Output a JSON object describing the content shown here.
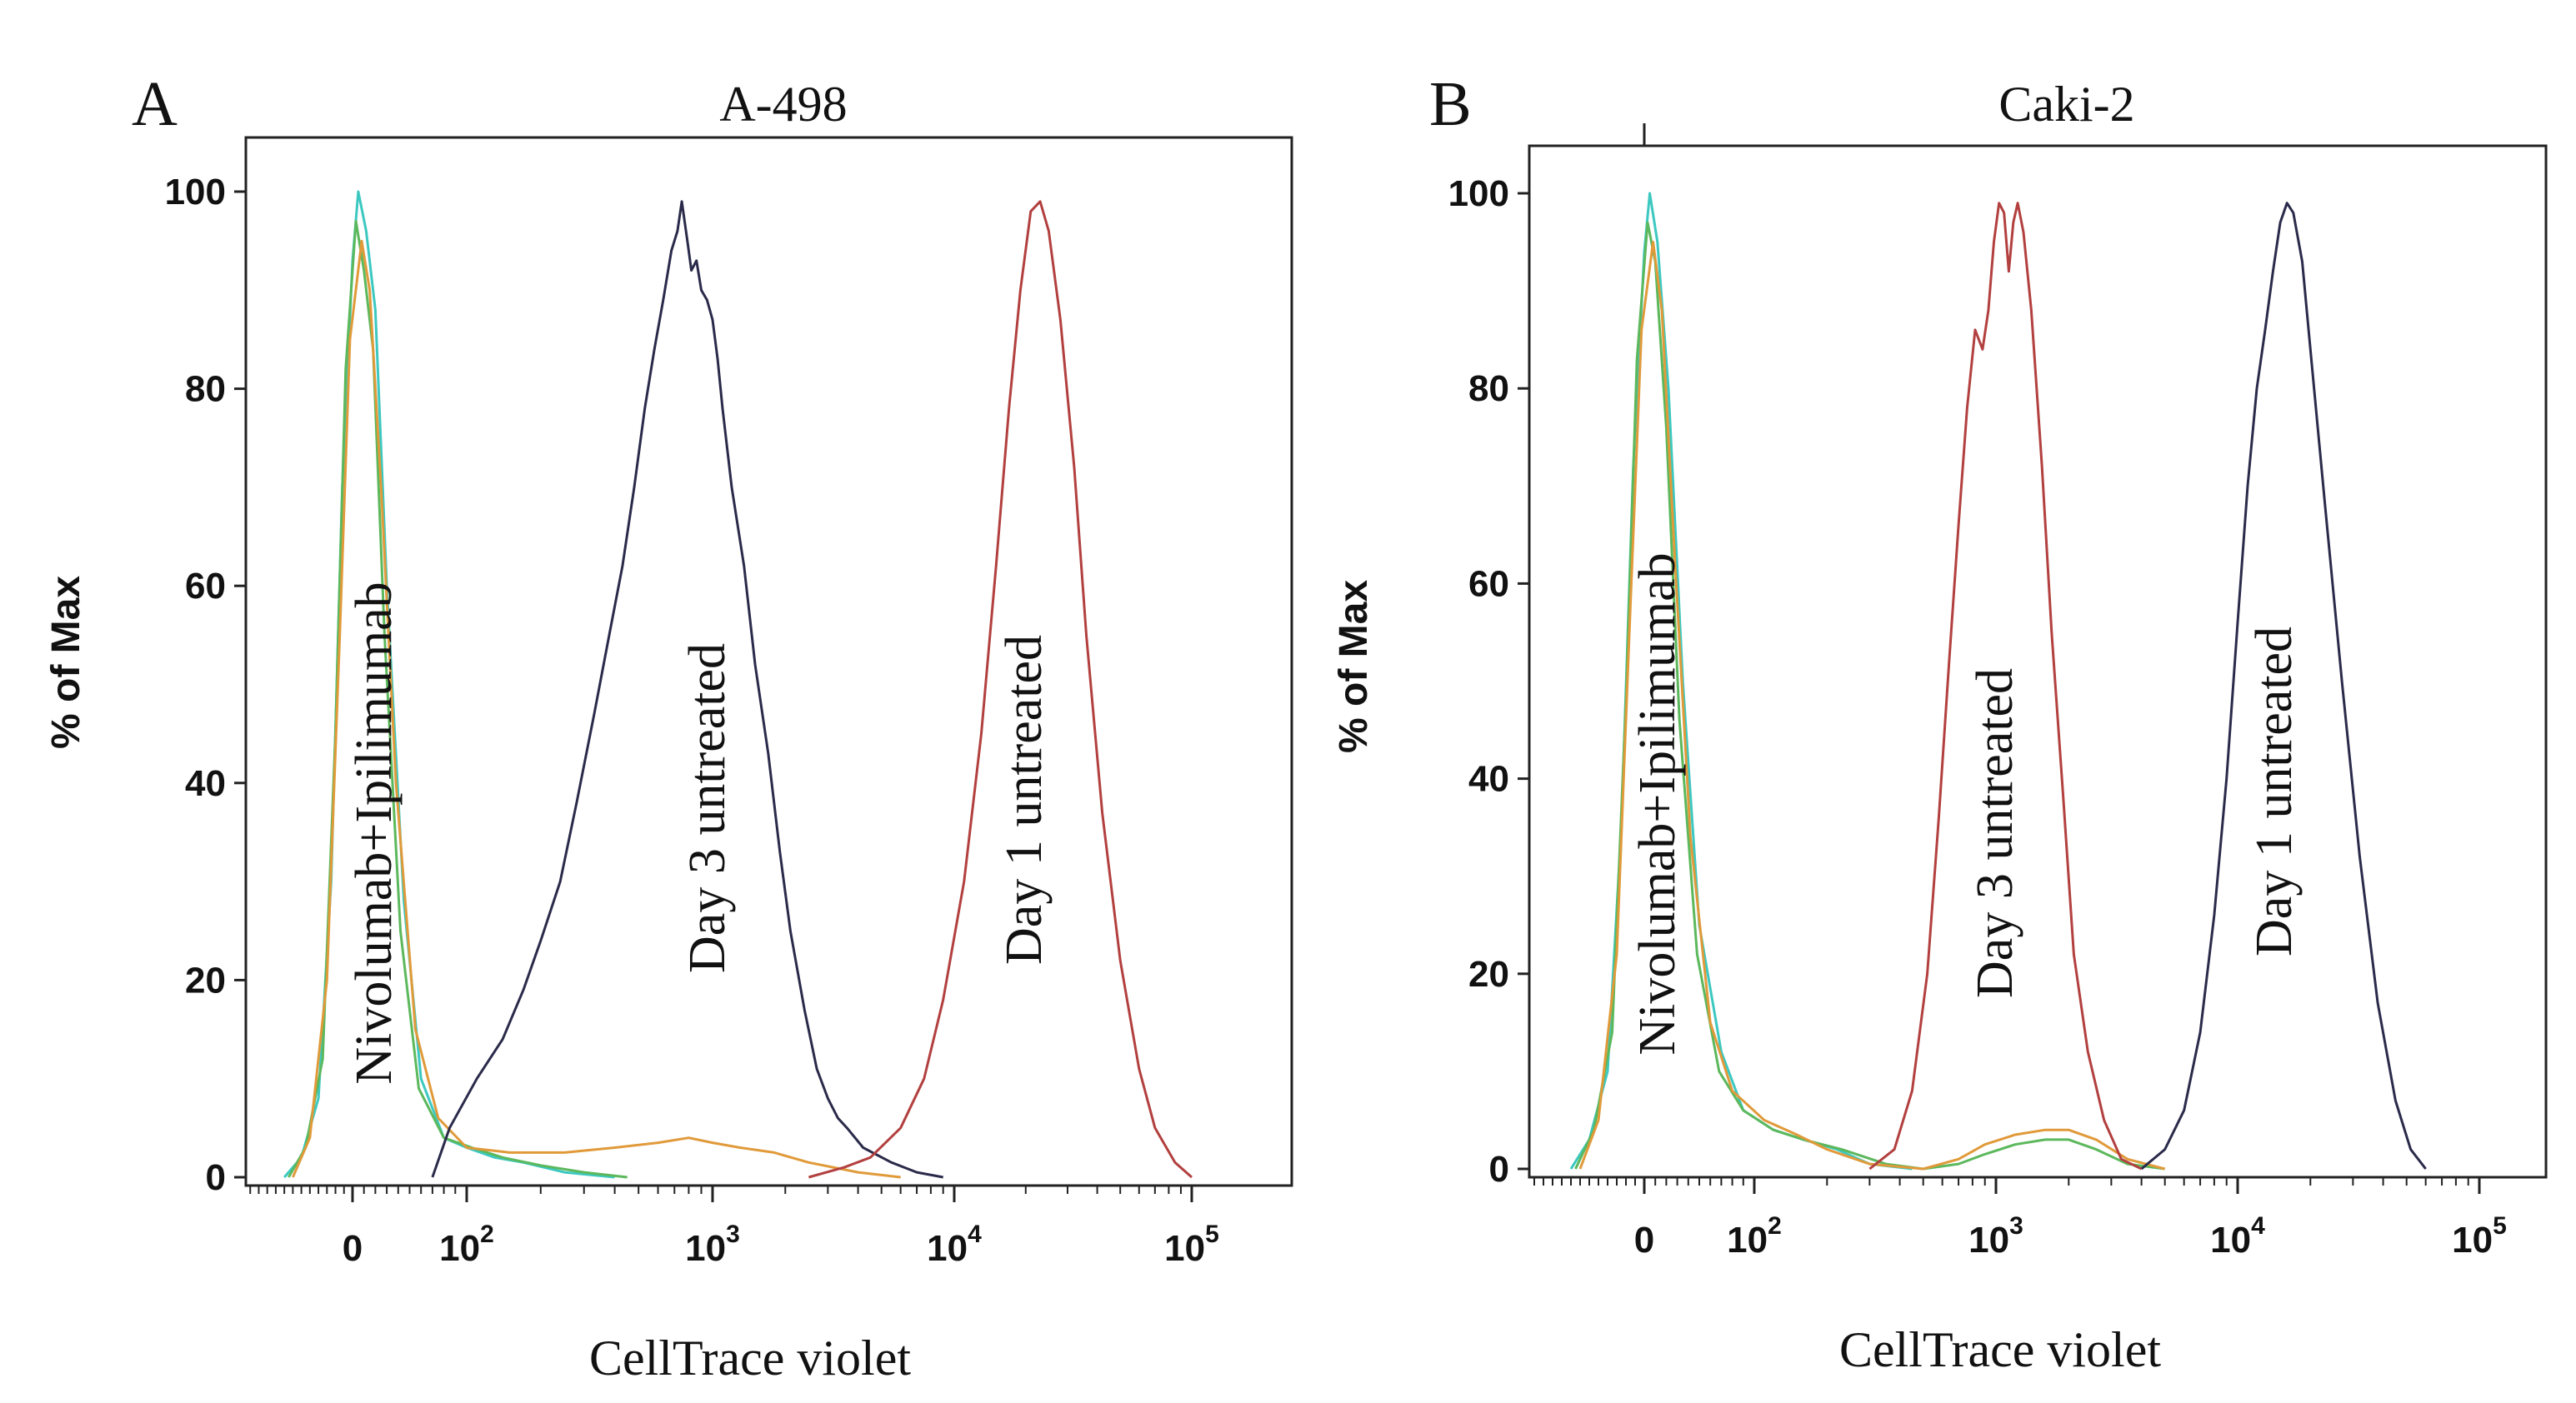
{
  "chart_data": [
    {
      "type": "line",
      "panel_letter": "A",
      "title": "A-498",
      "xlabel": "CellTrace violet",
      "ylabel": "% of Max",
      "ylim": [
        0,
        100
      ],
      "yticks": [
        0,
        20,
        40,
        60,
        80,
        100
      ],
      "xticks": [
        {
          "base": "0",
          "exp": "",
          "x": 0
        },
        {
          "base": "10",
          "exp": "2",
          "x": 100
        },
        {
          "base": "10",
          "exp": "3",
          "x": 1000
        },
        {
          "base": "10",
          "exp": "4",
          "x": 10000
        },
        {
          "base": "10",
          "exp": "5",
          "x": 100000
        }
      ],
      "annotations": [
        "Nivolumab+Ipilimumab",
        "Day 3 untreated",
        "Day 1 untreated"
      ],
      "series": [
        {
          "name": "Nivolumab+Ipilimumab (cyan)",
          "color": "#3cc8c0",
          "points": [
            [
              -80,
              0
            ],
            [
              -60,
              2
            ],
            [
              -40,
              8
            ],
            [
              -25,
              30
            ],
            [
              -12,
              70
            ],
            [
              0,
              93
            ],
            [
              5,
              100
            ],
            [
              12,
              96
            ],
            [
              20,
              88
            ],
            [
              30,
              60
            ],
            [
              45,
              28
            ],
            [
              60,
              10
            ],
            [
              80,
              4
            ],
            [
              100,
              3
            ],
            [
              130,
              2
            ],
            [
              170,
              1.5
            ],
            [
              250,
              0.5
            ],
            [
              400,
              0
            ]
          ]
        },
        {
          "name": "Nivolumab+Ipilimumab (green)",
          "color": "#5cb85c",
          "points": [
            [
              -75,
              0
            ],
            [
              -55,
              3
            ],
            [
              -35,
              12
            ],
            [
              -20,
              45
            ],
            [
              -8,
              82
            ],
            [
              3,
              97
            ],
            [
              10,
              92
            ],
            [
              18,
              84
            ],
            [
              28,
              55
            ],
            [
              42,
              25
            ],
            [
              58,
              9
            ],
            [
              80,
              4
            ],
            [
              105,
              3
            ],
            [
              140,
              2
            ],
            [
              200,
              1.2
            ],
            [
              300,
              0.5
            ],
            [
              450,
              0
            ]
          ]
        },
        {
          "name": "Nivolumab+Ipilimumab (orange)",
          "color": "#e09a3a",
          "points": [
            [
              -70,
              0
            ],
            [
              -50,
              4
            ],
            [
              -30,
              20
            ],
            [
              -15,
              55
            ],
            [
              -3,
              85
            ],
            [
              8,
              95
            ],
            [
              15,
              90
            ],
            [
              25,
              70
            ],
            [
              38,
              40
            ],
            [
              55,
              15
            ],
            [
              75,
              6
            ],
            [
              100,
              3
            ],
            [
              150,
              2.5
            ],
            [
              250,
              2.5
            ],
            [
              400,
              3
            ],
            [
              600,
              3.5
            ],
            [
              800,
              4
            ],
            [
              1000,
              3.5
            ],
            [
              1300,
              3
            ],
            [
              1800,
              2.5
            ],
            [
              2500,
              1.5
            ],
            [
              4000,
              0.5
            ],
            [
              6000,
              0
            ]
          ]
        },
        {
          "name": "Day 3 untreated",
          "color": "#2a2a4a",
          "points": [
            [
              70,
              0
            ],
            [
              85,
              5
            ],
            [
              110,
              10
            ],
            [
              140,
              14
            ],
            [
              170,
              19
            ],
            [
              200,
              24
            ],
            [
              240,
              30
            ],
            [
              280,
              38
            ],
            [
              330,
              47
            ],
            [
              380,
              55
            ],
            [
              430,
              62
            ],
            [
              480,
              70
            ],
            [
              530,
              78
            ],
            [
              580,
              84
            ],
            [
              630,
              89
            ],
            [
              680,
              94
            ],
            [
              720,
              96
            ],
            [
              750,
              99
            ],
            [
              790,
              95
            ],
            [
              820,
              92
            ],
            [
              860,
              93
            ],
            [
              900,
              90
            ],
            [
              950,
              89
            ],
            [
              1000,
              87
            ],
            [
              1050,
              83
            ],
            [
              1100,
              78
            ],
            [
              1200,
              70
            ],
            [
              1350,
              62
            ],
            [
              1500,
              52
            ],
            [
              1700,
              43
            ],
            [
              1900,
              33
            ],
            [
              2100,
              25
            ],
            [
              2400,
              17
            ],
            [
              2700,
              11
            ],
            [
              3000,
              8
            ],
            [
              3300,
              6
            ],
            [
              3600,
              5
            ],
            [
              4200,
              3
            ],
            [
              5500,
              1.5
            ],
            [
              7000,
              0.5
            ],
            [
              9000,
              0
            ]
          ]
        },
        {
          "name": "Day 1 untreated",
          "color": "#b2403f",
          "points": [
            [
              2500,
              0
            ],
            [
              3500,
              1
            ],
            [
              4500,
              2
            ],
            [
              6000,
              5
            ],
            [
              7500,
              10
            ],
            [
              9000,
              18
            ],
            [
              11000,
              30
            ],
            [
              13000,
              45
            ],
            [
              15000,
              62
            ],
            [
              17000,
              78
            ],
            [
              19000,
              90
            ],
            [
              21000,
              98
            ],
            [
              23000,
              99
            ],
            [
              25000,
              96
            ],
            [
              28000,
              87
            ],
            [
              32000,
              72
            ],
            [
              36000,
              55
            ],
            [
              42000,
              37
            ],
            [
              50000,
              22
            ],
            [
              60000,
              11
            ],
            [
              70000,
              5
            ],
            [
              85000,
              1.5
            ],
            [
              100000,
              0
            ]
          ]
        }
      ]
    },
    {
      "type": "line",
      "panel_letter": "B",
      "title": "Caki-2",
      "xlabel": "CellTrace violet",
      "ylabel": "% of Max",
      "ylim": [
        0,
        100
      ],
      "yticks": [
        0,
        20,
        40,
        60,
        80,
        100
      ],
      "xticks": [
        {
          "base": "0",
          "exp": "",
          "x": 0
        },
        {
          "base": "10",
          "exp": "2",
          "x": 100
        },
        {
          "base": "10",
          "exp": "3",
          "x": 1000
        },
        {
          "base": "10",
          "exp": "4",
          "x": 10000
        },
        {
          "base": "10",
          "exp": "5",
          "x": 100000
        }
      ],
      "annotations": [
        "Nivolumab+Ipilimumab",
        "Day 3 untreated",
        "Day 1 untreated"
      ],
      "series": [
        {
          "name": "Nivolumab+Ipilimumab (cyan)",
          "color": "#3cc8c0",
          "points": [
            [
              -80,
              0
            ],
            [
              -60,
              3
            ],
            [
              -40,
              10
            ],
            [
              -25,
              35
            ],
            [
              -12,
              72
            ],
            [
              0,
              94
            ],
            [
              5,
              100
            ],
            [
              12,
              95
            ],
            [
              22,
              80
            ],
            [
              35,
              50
            ],
            [
              50,
              25
            ],
            [
              70,
              12
            ],
            [
              90,
              6
            ],
            [
              120,
              4
            ],
            [
              160,
              3
            ],
            [
              220,
              2
            ],
            [
              300,
              0.5
            ],
            [
              450,
              0
            ]
          ]
        },
        {
          "name": "Nivolumab+Ipilimumab (green)",
          "color": "#5cb85c",
          "points": [
            [
              -75,
              0
            ],
            [
              -55,
              4
            ],
            [
              -35,
              14
            ],
            [
              -20,
              48
            ],
            [
              -8,
              83
            ],
            [
              3,
              97
            ],
            [
              10,
              93
            ],
            [
              20,
              76
            ],
            [
              32,
              46
            ],
            [
              48,
              22
            ],
            [
              68,
              10
            ],
            [
              90,
              6
            ],
            [
              120,
              4
            ],
            [
              160,
              3
            ],
            [
              230,
              2
            ],
            [
              350,
              0.5
            ],
            [
              500,
              0
            ],
            [
              700,
              0.5
            ],
            [
              900,
              1.5
            ],
            [
              1200,
              2.5
            ],
            [
              1600,
              3
            ],
            [
              2000,
              3
            ],
            [
              2600,
              2
            ],
            [
              3500,
              0.5
            ],
            [
              5000,
              0
            ]
          ]
        },
        {
          "name": "Nivolumab+Ipilimumab (orange)",
          "color": "#e09a3a",
          "points": [
            [
              -70,
              0
            ],
            [
              -50,
              5
            ],
            [
              -30,
              22
            ],
            [
              -15,
              58
            ],
            [
              -3,
              86
            ],
            [
              8,
              95
            ],
            [
              16,
              88
            ],
            [
              28,
              62
            ],
            [
              42,
              34
            ],
            [
              60,
              15
            ],
            [
              80,
              8
            ],
            [
              110,
              5
            ],
            [
              150,
              3.5
            ],
            [
              200,
              2
            ],
            [
              300,
              0.5
            ],
            [
              500,
              0
            ],
            [
              700,
              1
            ],
            [
              900,
              2.5
            ],
            [
              1200,
              3.5
            ],
            [
              1600,
              4
            ],
            [
              2000,
              4
            ],
            [
              2600,
              3
            ],
            [
              3500,
              1
            ],
            [
              5000,
              0
            ]
          ]
        },
        {
          "name": "Day 3 untreated",
          "color": "#b2403f",
          "points": [
            [
              300,
              0
            ],
            [
              380,
              2
            ],
            [
              450,
              8
            ],
            [
              520,
              20
            ],
            [
              580,
              36
            ],
            [
              640,
              52
            ],
            [
              700,
              66
            ],
            [
              760,
              78
            ],
            [
              820,
              86
            ],
            [
              880,
              84
            ],
            [
              930,
              88
            ],
            [
              980,
              95
            ],
            [
              1030,
              99
            ],
            [
              1080,
              98
            ],
            [
              1130,
              92
            ],
            [
              1180,
              97
            ],
            [
              1230,
              99
            ],
            [
              1300,
              96
            ],
            [
              1400,
              88
            ],
            [
              1550,
              72
            ],
            [
              1700,
              55
            ],
            [
              1900,
              38
            ],
            [
              2100,
              22
            ],
            [
              2400,
              12
            ],
            [
              2800,
              5
            ],
            [
              3300,
              1
            ],
            [
              4000,
              0
            ]
          ]
        },
        {
          "name": "Day 1 untreated",
          "color": "#2a2a4a",
          "points": [
            [
              4000,
              0
            ],
            [
              5000,
              2
            ],
            [
              6000,
              6
            ],
            [
              7000,
              14
            ],
            [
              8000,
              26
            ],
            [
              9000,
              40
            ],
            [
              10000,
              56
            ],
            [
              11000,
              70
            ],
            [
              12000,
              80
            ],
            [
              13000,
              86
            ],
            [
              14000,
              92
            ],
            [
              15000,
              97
            ],
            [
              16000,
              99
            ],
            [
              17000,
              98
            ],
            [
              18500,
              93
            ],
            [
              20000,
              84
            ],
            [
              23000,
              68
            ],
            [
              27000,
              50
            ],
            [
              32000,
              32
            ],
            [
              38000,
              17
            ],
            [
              45000,
              7
            ],
            [
              52000,
              2
            ],
            [
              60000,
              0
            ]
          ]
        }
      ]
    }
  ]
}
